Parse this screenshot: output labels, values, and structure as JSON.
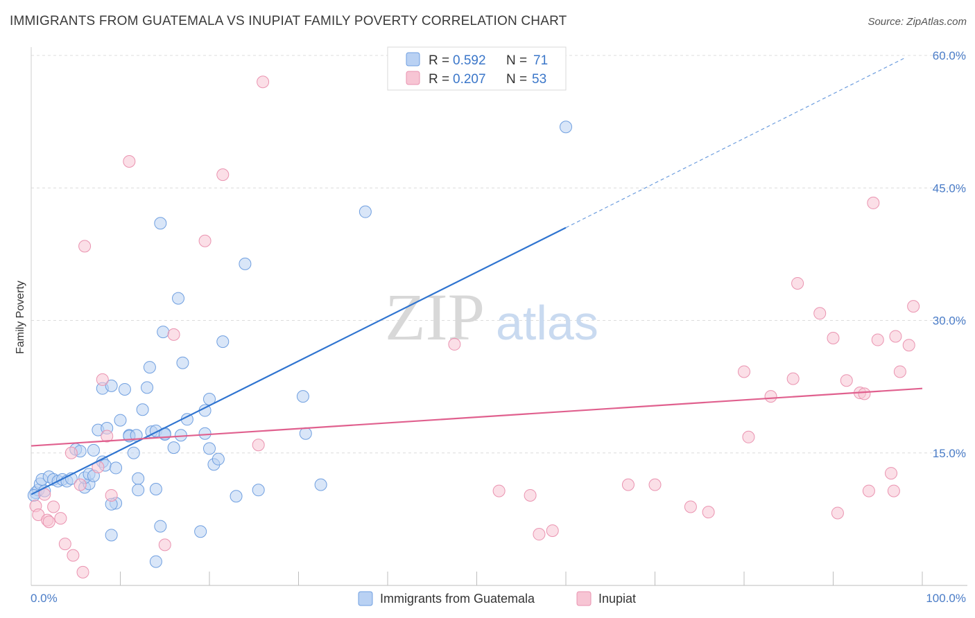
{
  "chart_data": {
    "type": "scatter",
    "title": "IMMIGRANTS FROM GUATEMALA VS INUPIAT FAMILY POVERTY CORRELATION CHART",
    "source": "Source: ZipAtlas.com",
    "xlabel": "",
    "ylabel": "Family Poverty",
    "xlim": [
      0,
      100
    ],
    "ylim": [
      0,
      60
    ],
    "x_tick_labels": [
      "0.0%",
      "100.0%"
    ],
    "y_ticks": [
      15,
      30,
      45,
      60
    ],
    "y_tick_labels": [
      "15.0%",
      "30.0%",
      "45.0%",
      "60.0%"
    ],
    "watermark": [
      "ZIP",
      "atlas"
    ],
    "legend": {
      "r_label": "R =",
      "n_label": "N =",
      "entries": [
        {
          "r": "0.592",
          "n": "71"
        },
        {
          "r": "0.207",
          "n": "53"
        }
      ]
    },
    "series": [
      {
        "name": "Immigrants from Guatemala",
        "color": "#6f9fe0",
        "fill": "#b9d1f3",
        "line_color": "#2f74d0",
        "trend": {
          "x0": 0,
          "y0": 10.3,
          "x1": 60,
          "y1": 40.5,
          "dash_to_x": 98,
          "dash_to_y": 59.7
        },
        "points": [
          [
            0.5,
            10.5
          ],
          [
            0.8,
            10.8
          ],
          [
            1.0,
            11.5
          ],
          [
            1.2,
            12.0
          ],
          [
            1.5,
            10.7
          ],
          [
            2.0,
            12.3
          ],
          [
            2.5,
            12.0
          ],
          [
            3.0,
            11.8
          ],
          [
            3.5,
            12.0
          ],
          [
            4.0,
            11.8
          ],
          [
            4.5,
            12.1
          ],
          [
            5.0,
            15.4
          ],
          [
            5.5,
            15.2
          ],
          [
            6.0,
            11.1
          ],
          [
            6.5,
            11.5
          ],
          [
            6.0,
            12.2
          ],
          [
            7.0,
            15.3
          ],
          [
            7.5,
            17.6
          ],
          [
            6.5,
            12.6
          ],
          [
            7.0,
            12.4
          ],
          [
            8.0,
            14.0
          ],
          [
            8.3,
            13.6
          ],
          [
            8.5,
            17.8
          ],
          [
            8.0,
            22.3
          ],
          [
            9.0,
            22.6
          ],
          [
            9.5,
            9.3
          ],
          [
            9.0,
            5.7
          ],
          [
            9.0,
            9.2
          ],
          [
            9.5,
            13.3
          ],
          [
            10.0,
            18.7
          ],
          [
            10.5,
            22.2
          ],
          [
            11.0,
            17.0
          ],
          [
            11.0,
            16.9
          ],
          [
            11.5,
            15.0
          ],
          [
            11.8,
            17.0
          ],
          [
            12.0,
            12.1
          ],
          [
            12.0,
            10.8
          ],
          [
            12.5,
            19.9
          ],
          [
            13.0,
            22.4
          ],
          [
            13.3,
            24.7
          ],
          [
            13.5,
            17.4
          ],
          [
            14.0,
            17.5
          ],
          [
            14.0,
            2.7
          ],
          [
            14.0,
            10.9
          ],
          [
            14.5,
            41.0
          ],
          [
            14.5,
            6.7
          ],
          [
            14.8,
            28.7
          ],
          [
            15.0,
            17.2
          ],
          [
            15.0,
            17.1
          ],
          [
            16.0,
            15.6
          ],
          [
            16.5,
            32.5
          ],
          [
            16.8,
            17.0
          ],
          [
            17.0,
            25.2
          ],
          [
            17.5,
            18.8
          ],
          [
            19.0,
            6.1
          ],
          [
            19.5,
            19.8
          ],
          [
            19.5,
            17.2
          ],
          [
            20.0,
            21.1
          ],
          [
            20.0,
            15.5
          ],
          [
            20.5,
            13.7
          ],
          [
            21.0,
            14.3
          ],
          [
            21.5,
            27.6
          ],
          [
            23.0,
            10.1
          ],
          [
            24.0,
            36.4
          ],
          [
            25.5,
            10.8
          ],
          [
            30.5,
            21.4
          ],
          [
            30.8,
            17.2
          ],
          [
            32.5,
            11.4
          ],
          [
            37.5,
            42.3
          ],
          [
            60.0,
            51.9
          ],
          [
            0.3,
            10.2
          ]
        ]
      },
      {
        "name": "Inupiat",
        "color": "#ea93b0",
        "fill": "#f7c5d4",
        "line_color": "#e0608e",
        "trend": {
          "x0": 0,
          "y0": 15.8,
          "x1": 100,
          "y1": 22.3
        },
        "points": [
          [
            0.5,
            9.0
          ],
          [
            0.8,
            8.0
          ],
          [
            1.5,
            10.3
          ],
          [
            1.8,
            7.4
          ],
          [
            2.0,
            7.2
          ],
          [
            2.5,
            8.9
          ],
          [
            3.3,
            7.6
          ],
          [
            3.8,
            4.7
          ],
          [
            4.5,
            15.0
          ],
          [
            4.7,
            3.4
          ],
          [
            5.5,
            11.4
          ],
          [
            5.8,
            1.5
          ],
          [
            6.0,
            38.4
          ],
          [
            7.5,
            13.4
          ],
          [
            8.0,
            23.3
          ],
          [
            8.5,
            16.9
          ],
          [
            9.0,
            10.2
          ],
          [
            11.0,
            48.0
          ],
          [
            15.0,
            4.6
          ],
          [
            16.0,
            28.4
          ],
          [
            19.5,
            39.0
          ],
          [
            21.5,
            46.5
          ],
          [
            25.5,
            15.9
          ],
          [
            26.0,
            57.0
          ],
          [
            47.5,
            27.3
          ],
          [
            52.5,
            10.7
          ],
          [
            56.0,
            10.2
          ],
          [
            57.0,
            5.8
          ],
          [
            58.5,
            6.2
          ],
          [
            67.0,
            11.4
          ],
          [
            70.0,
            11.4
          ],
          [
            74.0,
            8.9
          ],
          [
            76.0,
            8.3
          ],
          [
            80.0,
            24.2
          ],
          [
            80.5,
            16.8
          ],
          [
            83.0,
            21.4
          ],
          [
            85.5,
            23.4
          ],
          [
            86.0,
            34.2
          ],
          [
            88.5,
            30.8
          ],
          [
            90.0,
            28.0
          ],
          [
            90.5,
            8.2
          ],
          [
            91.5,
            23.2
          ],
          [
            93.0,
            21.8
          ],
          [
            93.5,
            21.7
          ],
          [
            94.0,
            10.7
          ],
          [
            94.5,
            43.3
          ],
          [
            95.0,
            27.8
          ],
          [
            96.5,
            12.7
          ],
          [
            96.8,
            10.7
          ],
          [
            97.0,
            28.2
          ],
          [
            97.5,
            24.2
          ],
          [
            98.5,
            27.2
          ],
          [
            99.0,
            31.6
          ]
        ]
      }
    ]
  }
}
